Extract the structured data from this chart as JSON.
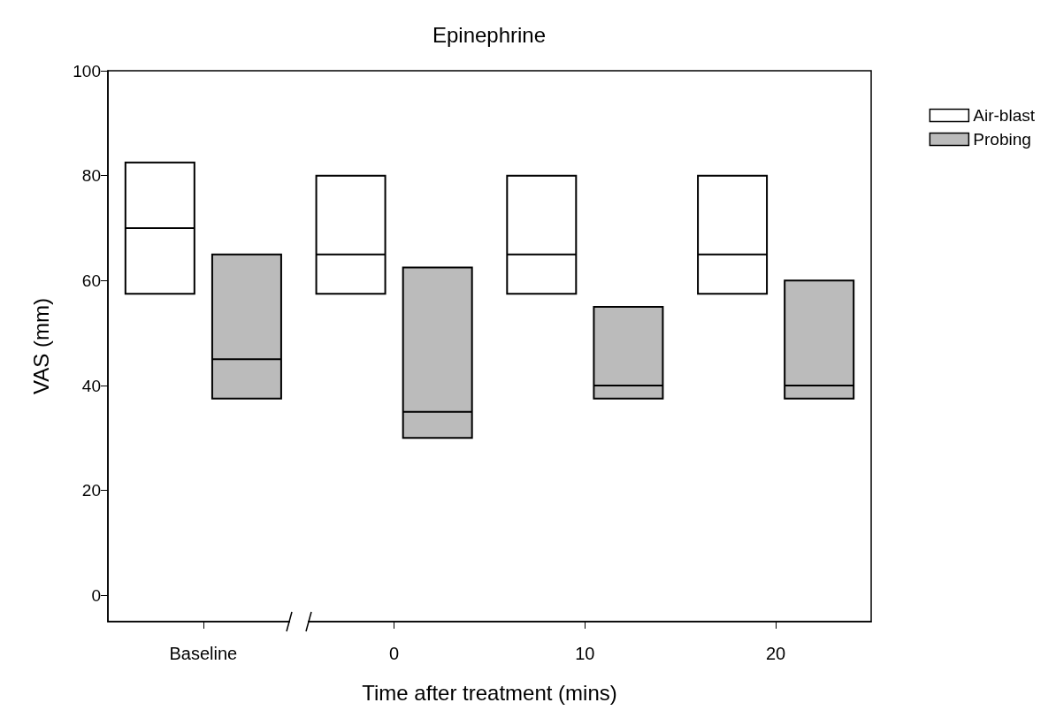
{
  "chart_data": {
    "type": "box",
    "title": "Epinephrine",
    "xlabel": "Time after treatment (mins)",
    "ylabel": "VAS (mm)",
    "categories": [
      "Baseline",
      "0",
      "10",
      "20"
    ],
    "series": [
      {
        "name": "Air-blast",
        "color": "#ffffff",
        "boxes": [
          {
            "low": 57.5,
            "q1": 57.5,
            "median": 70,
            "q3": 82.5,
            "high": 82.5
          },
          {
            "low": 57.5,
            "q1": 57.5,
            "median": 65,
            "q3": 80,
            "high": 80
          },
          {
            "low": 57.5,
            "q1": 57.5,
            "median": 65,
            "q3": 80,
            "high": 80
          },
          {
            "low": 57.5,
            "q1": 57.5,
            "median": 65,
            "q3": 80,
            "high": 80
          }
        ]
      },
      {
        "name": "Probing",
        "color": "#bbbbbb",
        "boxes": [
          {
            "low": 37.5,
            "q1": 37.5,
            "median": 45,
            "q3": 65,
            "high": 65
          },
          {
            "low": 30,
            "q1": 30,
            "median": 35,
            "q3": 62.5,
            "high": 62.5
          },
          {
            "low": 37.5,
            "q1": 37.5,
            "median": 40,
            "q3": 55,
            "high": 55
          },
          {
            "low": 37.5,
            "q1": 37.5,
            "median": 40,
            "q3": 60,
            "high": 60
          }
        ]
      }
    ],
    "ylim": [
      -5,
      100
    ],
    "yticks": [
      0,
      20,
      40,
      60,
      80,
      100
    ],
    "legend": "top right"
  }
}
